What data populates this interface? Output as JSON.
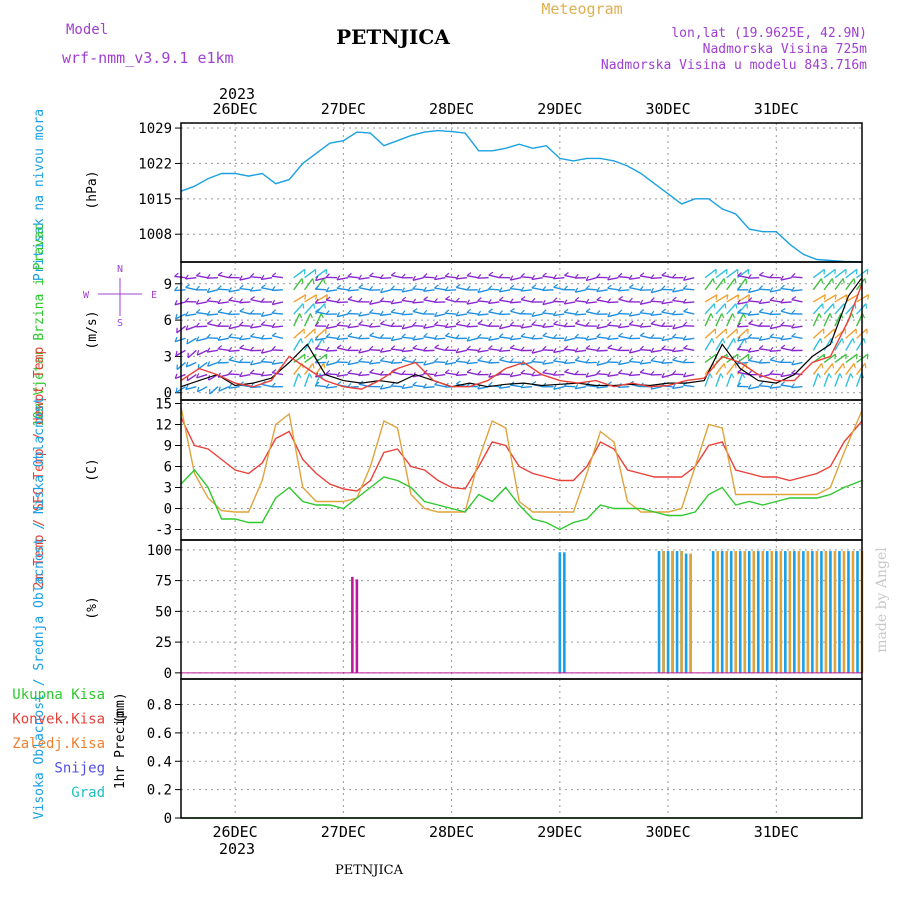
{
  "header": {
    "model_label": "Model",
    "model_name": "wrf-nmm_v3.9.1  e1km",
    "station": "PETNJICA",
    "product": "Meteogram",
    "coords": "lon,lat (19.9625E, 42.9N)",
    "elevation": "Nadmorska Visina 725m",
    "model_elevation": "Nadmorska Visina u modelu 843.716m"
  },
  "footer": {
    "station": "PETNJICA",
    "credit": "made by Angel"
  },
  "colors": {
    "pressure": "#1ba1e2",
    "temp2m": "#e8413a",
    "sfc_temp": "#e0a43c",
    "dewpt": "#2fc82f",
    "wind_speed": "#000000",
    "wind_gust": "#e8413a",
    "high_cloud": "#1aa0e6",
    "mid_cloud": "#e0a43c",
    "low_cloud": "#c0189a",
    "total_precip": "#2fc82f",
    "conv_precip": "#e8413a",
    "frozen_precip": "#f08030",
    "snow": "#5050e0",
    "hail": "#20c0c0",
    "wind_barb": "#9a20c8"
  },
  "time_axis": {
    "year": "2023",
    "days": [
      "26DEC",
      "27DEC",
      "28DEC",
      "29DEC",
      "30DEC",
      "31DEC"
    ],
    "day_hours": [
      0,
      24,
      48,
      72,
      96,
      120
    ],
    "range": [
      -12,
      139
    ]
  },
  "chart_data": [
    {
      "type": "line",
      "panel": "pressure",
      "ylabel": "Pritisak na nivou mora",
      "unit": "(hPa)",
      "yticks": [
        1008,
        1015,
        1022,
        1029
      ],
      "ylim": [
        1002.5,
        1030
      ],
      "grid": true,
      "series": [
        {
          "key": "pressure",
          "x": [
            -12,
            -9,
            -6,
            -3,
            0,
            3,
            6,
            9,
            12,
            15,
            18,
            21,
            24,
            27,
            30,
            33,
            36,
            39,
            42,
            45,
            48,
            51,
            54,
            57,
            60,
            63,
            66,
            69,
            72,
            75,
            78,
            81,
            84,
            87,
            90,
            93,
            96,
            99,
            102,
            105,
            108,
            111,
            114,
            117,
            120,
            123,
            126,
            129,
            132,
            135,
            139
          ],
          "values": [
            1016.5,
            1017.5,
            1019,
            1020,
            1020,
            1019.5,
            1020,
            1018,
            1018.8,
            1022,
            1024,
            1026,
            1026.5,
            1028.2,
            1028,
            1025.5,
            1026.5,
            1027.5,
            1028.2,
            1028.5,
            1028.3,
            1028,
            1024.5,
            1024.5,
            1025,
            1025.8,
            1025,
            1025.5,
            1023,
            1022.5,
            1023,
            1023,
            1022.5,
            1021.5,
            1020,
            1018,
            1016,
            1014,
            1015,
            1015,
            1013,
            1012,
            1009,
            1008.5,
            1008.5,
            1006,
            1004,
            1003,
            1002.8,
            1002.6,
            1002.5
          ]
        }
      ]
    },
    {
      "type": "line",
      "panel": "wind",
      "ylabel": "10m Vjetar Brzina i Pravac",
      "unit": "(m/s)",
      "compass": [
        "N",
        "E",
        "S",
        "W"
      ],
      "yticks": [
        0,
        3,
        6,
        9
      ],
      "ylim": [
        -0.6,
        10.8
      ],
      "grid": true,
      "series": [
        {
          "key": "wind_speed",
          "x": [
            -12,
            -8,
            -4,
            0,
            4,
            8,
            12,
            16,
            20,
            24,
            28,
            32,
            36,
            40,
            44,
            48,
            52,
            56,
            60,
            64,
            68,
            72,
            76,
            80,
            84,
            88,
            92,
            96,
            100,
            104,
            108,
            112,
            116,
            120,
            124,
            128,
            132,
            136,
            139
          ],
          "values": [
            0.5,
            1,
            1.5,
            0.6,
            0.8,
            1.2,
            2.5,
            4,
            1.5,
            1,
            0.8,
            1,
            0.8,
            1.5,
            1,
            0.5,
            0.8,
            0.5,
            0.7,
            0.8,
            0.6,
            0.7,
            0.8,
            0.6,
            0.6,
            0.7,
            0.6,
            0.8,
            0.8,
            1,
            4,
            2,
            1,
            0.8,
            1.5,
            3,
            4,
            8,
            9.5
          ]
        },
        {
          "key": "wind_gust",
          "x": [
            -12,
            -8,
            -4,
            0,
            4,
            8,
            12,
            16,
            20,
            24,
            28,
            32,
            36,
            40,
            44,
            48,
            52,
            56,
            60,
            64,
            68,
            72,
            76,
            80,
            84,
            88,
            92,
            96,
            100,
            104,
            108,
            112,
            116,
            120,
            124,
            128,
            132,
            136,
            139
          ],
          "values": [
            1,
            2,
            1.5,
            0.8,
            0.5,
            1,
            3,
            2,
            1,
            0.5,
            0.3,
            1,
            2,
            2.5,
            1,
            0.5,
            0.5,
            1,
            2,
            2.5,
            1.5,
            1,
            0.8,
            1,
            0.5,
            0.8,
            0.5,
            0.6,
            1,
            1.2,
            3,
            2.5,
            1.5,
            1,
            1,
            2.5,
            3,
            6,
            9
          ]
        }
      ]
    },
    {
      "type": "line",
      "panel": "temperature",
      "ylabel": "2m Temp / SFC Temp / dewpt Temp",
      "unit": "(C)",
      "yticks": [
        -3,
        0,
        3,
        6,
        9,
        12,
        15
      ],
      "ylim": [
        -4.5,
        15.5
      ],
      "grid": true,
      "series": [
        {
          "key": "temp2m",
          "x": [
            -12,
            -9,
            -6,
            -3,
            0,
            3,
            6,
            9,
            12,
            15,
            18,
            21,
            24,
            27,
            30,
            33,
            36,
            39,
            42,
            45,
            48,
            51,
            54,
            57,
            60,
            63,
            66,
            69,
            72,
            75,
            78,
            81,
            84,
            87,
            90,
            93,
            96,
            99,
            102,
            105,
            108,
            111,
            114,
            117,
            120,
            123,
            126,
            129,
            132,
            135,
            139
          ],
          "values": [
            13,
            9,
            8.5,
            7,
            5.5,
            5,
            6.5,
            10,
            11,
            7,
            5,
            3.5,
            2.8,
            2.5,
            4,
            8,
            8.5,
            6,
            5.5,
            4,
            3,
            2.8,
            6,
            9.5,
            9,
            6,
            5,
            4.5,
            4,
            4,
            6,
            9.5,
            8.5,
            5.5,
            5,
            4.5,
            4.5,
            4.5,
            6,
            9,
            9.5,
            5.5,
            5,
            4.5,
            4.5,
            4,
            4.5,
            5,
            6,
            9.5,
            12.5
          ]
        },
        {
          "key": "sfc_temp",
          "x": [
            -12,
            -9,
            -6,
            -3,
            0,
            3,
            6,
            9,
            12,
            15,
            18,
            21,
            24,
            27,
            30,
            33,
            36,
            39,
            42,
            45,
            48,
            51,
            54,
            57,
            60,
            63,
            66,
            69,
            72,
            75,
            78,
            81,
            84,
            87,
            90,
            93,
            96,
            99,
            102,
            105,
            108,
            111,
            114,
            117,
            120,
            123,
            126,
            129,
            132,
            135,
            139
          ],
          "values": [
            14.5,
            5,
            1.5,
            -0.3,
            -0.5,
            -0.5,
            4,
            12,
            13.5,
            3,
            1,
            1,
            1,
            1.5,
            6,
            12.5,
            11.5,
            2,
            0,
            -0.5,
            -0.5,
            -0.5,
            7,
            12.5,
            11.5,
            1,
            -0.5,
            -0.5,
            -0.5,
            -0.5,
            5,
            11,
            9.5,
            1,
            -0.5,
            -0.5,
            -0.5,
            0,
            6,
            12,
            11.5,
            2,
            2,
            2,
            2,
            2,
            2,
            2,
            3,
            8,
            14
          ]
        },
        {
          "key": "dewpt",
          "x": [
            -12,
            -9,
            -6,
            -3,
            0,
            3,
            6,
            9,
            12,
            15,
            18,
            21,
            24,
            27,
            30,
            33,
            36,
            39,
            42,
            45,
            48,
            51,
            54,
            57,
            60,
            63,
            66,
            69,
            72,
            75,
            78,
            81,
            84,
            87,
            90,
            93,
            96,
            99,
            102,
            105,
            108,
            111,
            114,
            117,
            120,
            123,
            126,
            129,
            132,
            135,
            139
          ],
          "values": [
            3.5,
            5.5,
            3,
            -1.5,
            -1.5,
            -2,
            -2,
            1.5,
            3,
            1,
            0.5,
            0.5,
            0,
            1.5,
            3,
            4.5,
            4,
            3,
            1,
            0.5,
            0,
            -0.5,
            2,
            1,
            3,
            0.5,
            -1.5,
            -2,
            -3,
            -2,
            -1.5,
            0.5,
            0,
            0,
            0,
            -0.5,
            -1,
            -1,
            -0.5,
            2,
            3,
            0.5,
            1,
            0.5,
            1,
            1.5,
            1.5,
            1.5,
            2,
            3,
            4
          ]
        }
      ]
    },
    {
      "type": "bar",
      "panel": "cloud",
      "ylabel": "Visoka Oblacnost / Srednja Oblacnost / Niska Oblacnost",
      "unit": "(%)",
      "yticks": [
        0,
        25,
        50,
        75,
        100
      ],
      "ylim": [
        -5,
        108
      ],
      "grid": true,
      "series": [
        {
          "key": "low_cloud",
          "x": [
            26,
            27
          ],
          "values": [
            78,
            76
          ]
        },
        {
          "key": "high_cloud",
          "x": [
            72,
            73,
            94,
            95,
            96,
            97,
            98,
            99,
            100,
            101
          ],
          "values": [
            98,
            98,
            99,
            99,
            99,
            99,
            99,
            99,
            97,
            96
          ]
        },
        {
          "key": "mid_cloud",
          "x": [
            95,
            97,
            99,
            101,
            107,
            109,
            111,
            113,
            115,
            117,
            119,
            121,
            123,
            125,
            127,
            129,
            131,
            133,
            135,
            137,
            139
          ],
          "values": [
            99,
            99,
            99,
            97,
            99,
            99,
            99,
            99,
            99,
            99,
            99,
            99,
            99,
            99,
            99,
            99,
            99,
            99,
            99,
            99,
            99
          ]
        },
        {
          "key": "high_cloud",
          "x": [
            106,
            108,
            110,
            112,
            114,
            116,
            118,
            120,
            122,
            124,
            126,
            128,
            130,
            132,
            134,
            136,
            138
          ],
          "values": [
            99,
            99,
            99,
            99,
            99,
            99,
            99,
            99,
            99,
            99,
            99,
            99,
            99,
            99,
            99,
            99,
            99
          ]
        }
      ]
    },
    {
      "type": "line",
      "panel": "precip",
      "ylabel": "1hr Precip",
      "unit": "(mm)",
      "legend": [
        "Ukupna Kisa",
        "Konvek.Kisa",
        "Zaledj.Kisa",
        "Snijeg",
        "Grad"
      ],
      "yticks": [
        0,
        0.2,
        0.4,
        0.6,
        0.8
      ],
      "ylim": [
        0,
        0.98
      ],
      "grid": true,
      "series": [
        {
          "key": "total_precip",
          "x": [
            -12,
            139
          ],
          "values": [
            0,
            0
          ]
        }
      ]
    }
  ]
}
